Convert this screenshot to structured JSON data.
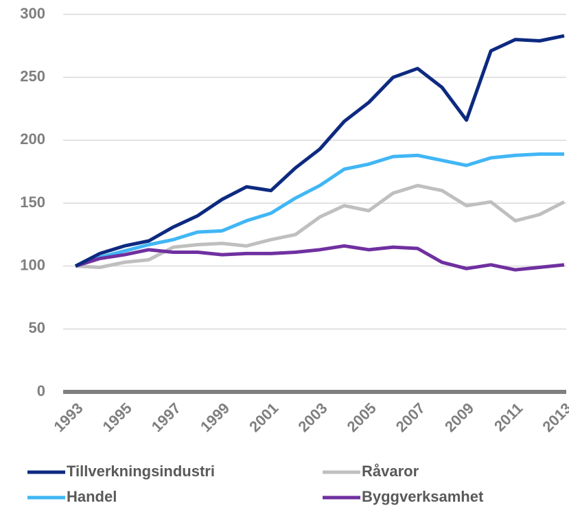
{
  "chart_data": {
    "type": "line",
    "x": [
      1993,
      1994,
      1995,
      1996,
      1997,
      1998,
      1999,
      2000,
      2001,
      2002,
      2003,
      2004,
      2005,
      2006,
      2007,
      2008,
      2009,
      2010,
      2011,
      2012,
      2013
    ],
    "xlim": [
      1993,
      2013
    ],
    "xticks": [
      1993,
      1995,
      1997,
      1999,
      2001,
      2003,
      2005,
      2007,
      2009,
      2011,
      2013
    ],
    "ylim": [
      0,
      300
    ],
    "yticks": [
      0,
      50,
      100,
      150,
      200,
      250,
      300
    ],
    "grid": true,
    "legend": "bottom",
    "series": [
      {
        "name": "Tillverkningsindustri",
        "color": "#0d2a80",
        "values": [
          100,
          110,
          116,
          120,
          131,
          140,
          153,
          163,
          160,
          178,
          193,
          215,
          230,
          250,
          257,
          242,
          216,
          271,
          280,
          279,
          283
        ]
      },
      {
        "name": "Råvaror",
        "color": "#bfbfbf",
        "values": [
          100,
          99,
          103,
          105,
          115,
          117,
          118,
          116,
          121,
          125,
          139,
          148,
          144,
          158,
          164,
          160,
          148,
          151,
          136,
          141,
          151
        ]
      },
      {
        "name": "Handel",
        "color": "#41b6f5",
        "values": [
          100,
          107,
          112,
          117,
          121,
          127,
          128,
          136,
          142,
          154,
          164,
          177,
          181,
          187,
          188,
          184,
          180,
          186,
          188,
          189,
          189
        ]
      },
      {
        "name": "Byggverksamhet",
        "color": "#7030a0",
        "values": [
          100,
          106,
          109,
          113,
          111,
          111,
          109,
          110,
          110,
          111,
          113,
          116,
          113,
          115,
          114,
          103,
          98,
          101,
          97,
          99,
          101
        ]
      }
    ]
  }
}
